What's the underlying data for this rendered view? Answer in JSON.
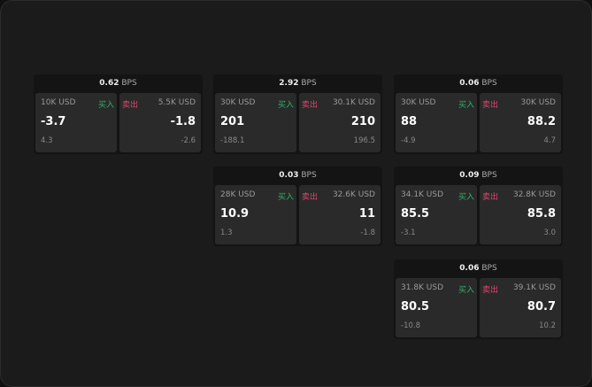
{
  "unit": "BPS",
  "buy_label": "买入",
  "sell_label": "卖出",
  "colors": {
    "buy": "#2fb36a",
    "sell": "#e0456e"
  },
  "cards": [
    {
      "spread": "0.62",
      "bid": {
        "amount": "10K USD",
        "price": "-3.7",
        "change": "4.3"
      },
      "ask": {
        "amount": "5.5K USD",
        "price": "-1.8",
        "change": "-2.6"
      }
    },
    {
      "spread": "2.92",
      "bid": {
        "amount": "30K USD",
        "price": "201",
        "change": "-188.1"
      },
      "ask": {
        "amount": "30.1K USD",
        "price": "210",
        "change": "196.5"
      }
    },
    {
      "spread": "0.06",
      "bid": {
        "amount": "30K USD",
        "price": "88",
        "change": "-4.9"
      },
      "ask": {
        "amount": "30K USD",
        "price": "88.2",
        "change": "4.7"
      }
    },
    {
      "spread": "0.03",
      "bid": {
        "amount": "28K USD",
        "price": "10.9",
        "change": "1.3"
      },
      "ask": {
        "amount": "32.6K USD",
        "price": "11",
        "change": "-1.8"
      }
    },
    {
      "spread": "0.09",
      "bid": {
        "amount": "34.1K USD",
        "price": "85.5",
        "change": "-3.1"
      },
      "ask": {
        "amount": "32.8K USD",
        "price": "85.8",
        "change": "3.0"
      }
    },
    {
      "spread": "0.06",
      "bid": {
        "amount": "31.8K USD",
        "price": "80.5",
        "change": "-10.8"
      },
      "ask": {
        "amount": "39.1K USD",
        "price": "80.7",
        "change": "10.2"
      }
    }
  ]
}
